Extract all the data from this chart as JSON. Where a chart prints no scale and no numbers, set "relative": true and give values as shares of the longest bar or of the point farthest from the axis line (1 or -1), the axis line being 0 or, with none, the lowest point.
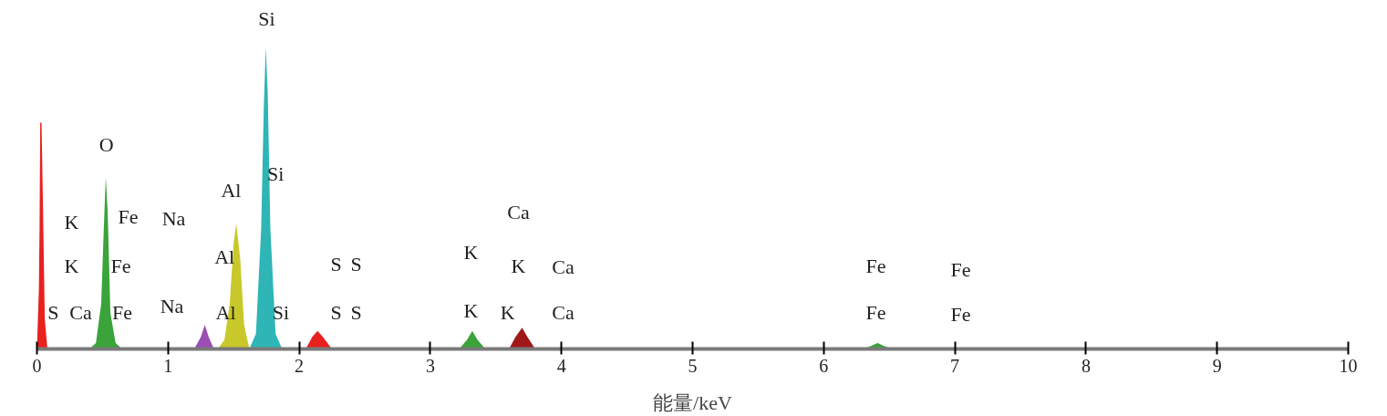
{
  "chart_data": {
    "type": "area",
    "relative": true,
    "xlabel": "能量/keV",
    "xlim": [
      0,
      10
    ],
    "xticks": [
      0,
      1,
      2,
      3,
      4,
      5,
      6,
      7,
      8,
      9,
      10
    ],
    "grid": false,
    "series": [
      {
        "color": "#e8211f",
        "x": [
          0.0,
          0.015,
          0.02,
          0.025,
          0.035,
          0.045,
          0.06,
          0.08
        ],
        "values": [
          0,
          0.2,
          0.4,
          0.75,
          0.75,
          0.5,
          0.1,
          0
        ]
      },
      {
        "color": "#3aa33a",
        "x": [
          0.4,
          0.45,
          0.49,
          0.51,
          0.525,
          0.54,
          0.56,
          0.6,
          0.65
        ],
        "values": [
          0,
          0.02,
          0.15,
          0.4,
          0.57,
          0.45,
          0.12,
          0.02,
          0
        ]
      },
      {
        "color": "#9b4fb5",
        "x": [
          1.2,
          1.25,
          1.28,
          1.31,
          1.35
        ],
        "values": [
          0,
          0.04,
          0.08,
          0.04,
          0
        ]
      },
      {
        "color": "#c8c82a",
        "x": [
          1.38,
          1.43,
          1.47,
          1.5,
          1.52,
          1.55,
          1.58,
          1.62
        ],
        "values": [
          0,
          0.03,
          0.15,
          0.35,
          0.415,
          0.3,
          0.08,
          0
        ]
      },
      {
        "color": "#2fb5b5",
        "x": [
          1.62,
          1.67,
          1.71,
          1.73,
          1.745,
          1.76,
          1.78,
          1.82,
          1.87
        ],
        "values": [
          0,
          0.05,
          0.4,
          0.8,
          1.0,
          0.85,
          0.4,
          0.05,
          0
        ]
      },
      {
        "color": "#e8211f",
        "x": [
          2.05,
          2.1,
          2.14,
          2.18,
          2.25
        ],
        "values": [
          0,
          0.04,
          0.06,
          0.04,
          0
        ]
      },
      {
        "color": "#3aa33a",
        "x": [
          3.22,
          3.28,
          3.32,
          3.36,
          3.42
        ],
        "values": [
          0,
          0.03,
          0.06,
          0.03,
          0
        ]
      },
      {
        "color": "#a01818",
        "x": [
          3.6,
          3.65,
          3.7,
          3.74,
          3.8
        ],
        "values": [
          0,
          0.04,
          0.07,
          0.04,
          0
        ]
      },
      {
        "color": "#3aa33a",
        "x": [
          6.3,
          6.36,
          6.41,
          6.46,
          6.52
        ],
        "values": [
          0,
          0.01,
          0.02,
          0.01,
          0
        ]
      }
    ],
    "annotations": [
      "Si",
      "O",
      "K",
      "Fe",
      "Na",
      "Al",
      "K",
      "Fe",
      "Al",
      "Si",
      "S",
      "Ca",
      "Fe",
      "Na",
      "Al",
      "Si",
      "S",
      "S",
      "S",
      "S",
      "K",
      "K",
      "K",
      "K",
      "Ca",
      "Ca",
      "Ca",
      "Fe",
      "Fe",
      "Fe",
      "Fe"
    ]
  }
}
